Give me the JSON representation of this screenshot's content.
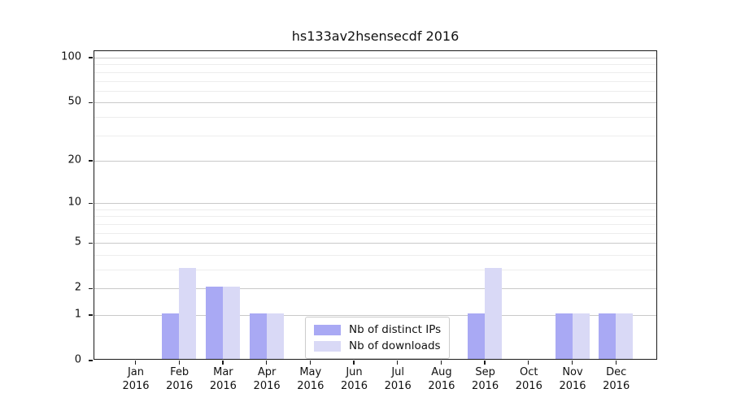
{
  "title": "hs133av2hsensecdf 2016",
  "chart_data": {
    "type": "bar",
    "title": "hs133av2hsensecdf 2016",
    "categories": [
      "Jan",
      "Feb",
      "Mar",
      "Apr",
      "May",
      "Jun",
      "Jul",
      "Aug",
      "Sep",
      "Oct",
      "Nov",
      "Dec"
    ],
    "year_label": "2016",
    "series": [
      {
        "name": "Nb of distinct IPs",
        "color": "#a9a9f4",
        "values": [
          0,
          1,
          2,
          1,
          0,
          0,
          0,
          0,
          1,
          0,
          1,
          1
        ]
      },
      {
        "name": "Nb of downloads",
        "color": "#d9d9f6",
        "values": [
          0,
          3,
          2,
          1,
          0,
          0,
          0,
          0,
          3,
          0,
          1,
          1
        ]
      }
    ],
    "xlabel": "",
    "ylabel": "",
    "y_scale": "log10(1+v)",
    "ylim": [
      0,
      110
    ],
    "y_major_ticks": [
      0,
      1,
      2,
      5,
      10,
      20,
      50,
      100
    ],
    "y_minor_ticks": [
      3,
      4,
      6,
      7,
      8,
      9,
      30,
      40,
      60,
      70,
      80,
      90
    ],
    "grid": "horizontal",
    "legend_position": "lower-center"
  },
  "legend": {
    "items": [
      {
        "label": "Nb of distinct IPs",
        "color": "#a9a9f4"
      },
      {
        "label": "Nb of downloads",
        "color": "#d9d9f6"
      }
    ]
  }
}
